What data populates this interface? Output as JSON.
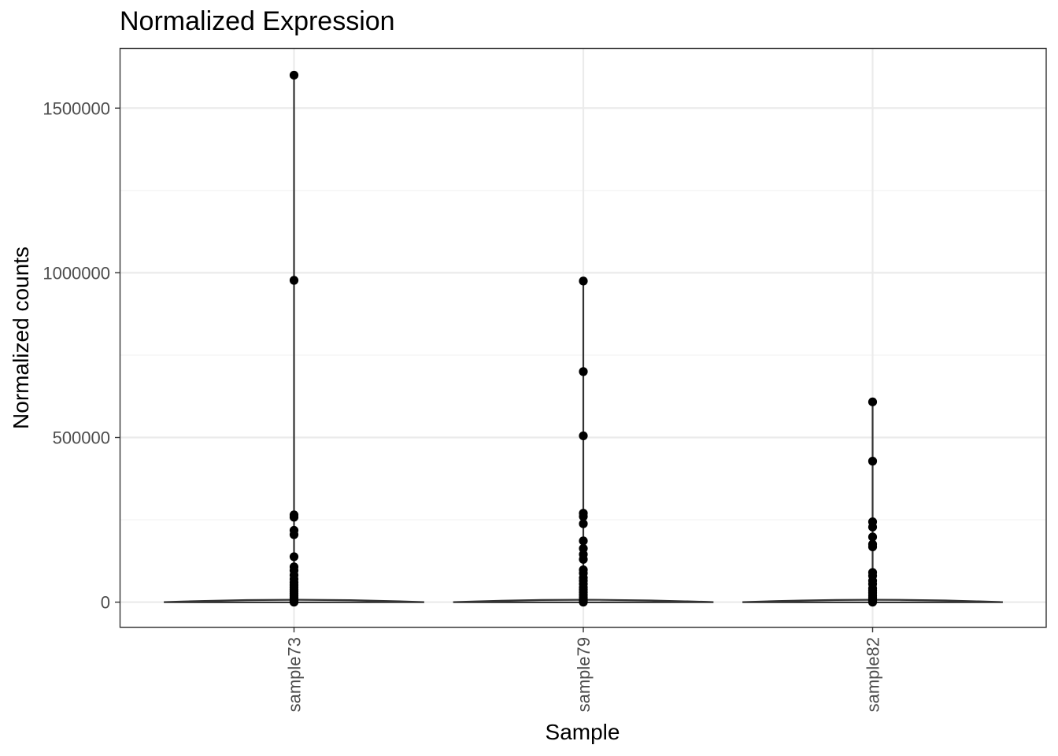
{
  "chart_data": {
    "type": "violin",
    "title": "Normalized Expression",
    "xlabel": "Sample",
    "ylabel": "Normalized counts",
    "categories": [
      "sample73",
      "sample79",
      "sample82"
    ],
    "ylim": [
      -75000,
      1680000
    ],
    "yticks": [
      0,
      500000,
      1000000,
      1500000
    ],
    "ytick_labels": [
      "0",
      "500000",
      "1000000",
      "1500000"
    ],
    "y_minor_ticks": [
      250000,
      750000,
      1250000
    ],
    "x_tick_label_rotation": -90,
    "grid": true,
    "legend": "none",
    "series": [
      {
        "category": "sample73",
        "points": [
          1600000,
          977000,
          265000,
          258000,
          218000,
          205000,
          138000,
          107000,
          96000,
          82000,
          70000,
          60000,
          52000,
          45000,
          38000,
          32000,
          26000,
          20000,
          15000,
          10000,
          6000,
          3000,
          1000,
          0
        ],
        "violin_peak": 3000
      },
      {
        "category": "sample79",
        "points": [
          975000,
          700000,
          505000,
          270000,
          260000,
          238000,
          186000,
          163000,
          145000,
          130000,
          98000,
          88000,
          74000,
          65000,
          55000,
          45000,
          38000,
          30000,
          22000,
          15000,
          10000,
          5000,
          2000,
          0
        ],
        "violin_peak": 2000
      },
      {
        "category": "sample82",
        "points": [
          608000,
          428000,
          244000,
          228000,
          198000,
          176000,
          168000,
          90000,
          80000,
          65000,
          55000,
          42000,
          35000,
          28000,
          20000,
          14000,
          9000,
          5000,
          2000,
          0
        ],
        "violin_peak": 1500
      }
    ]
  }
}
